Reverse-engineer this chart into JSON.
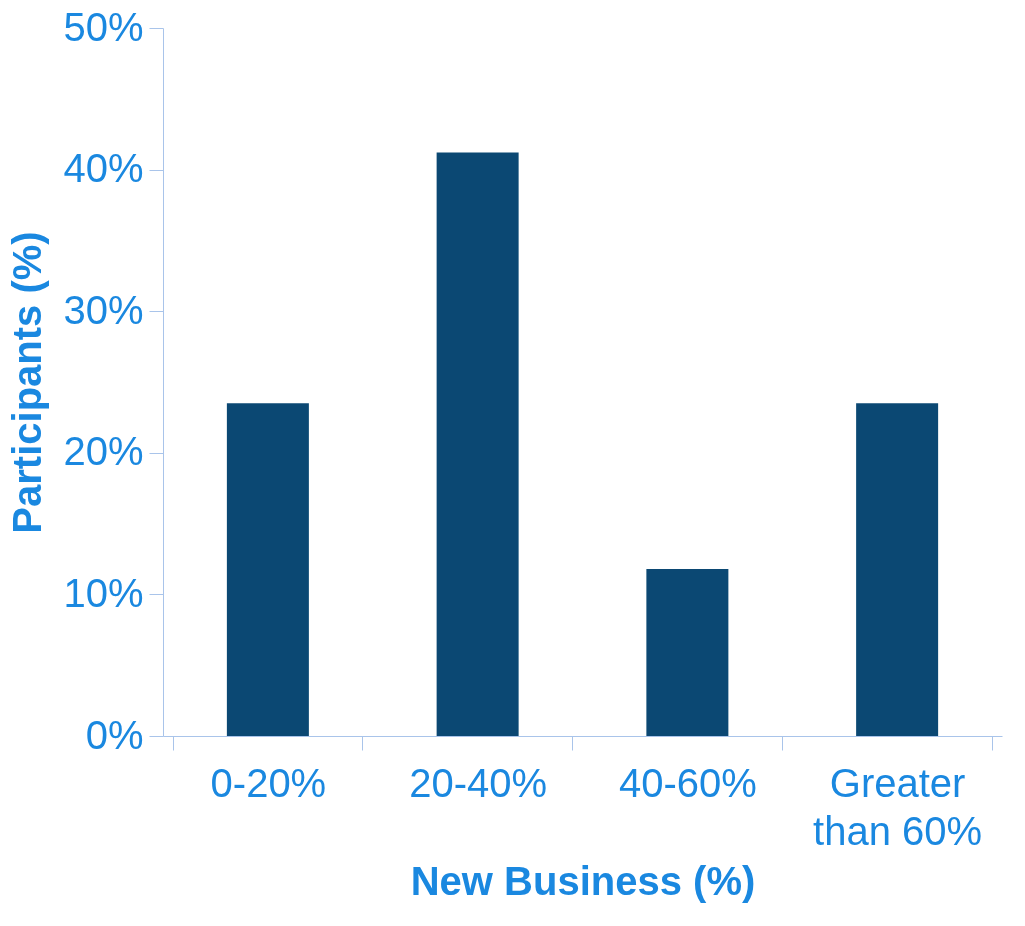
{
  "chart_data": {
    "type": "bar",
    "xlabel": "New Business (%)",
    "ylabel": "Participants (%)",
    "categories": [
      "0-20%",
      "20-40%",
      "40-60%",
      "Greater than 60%"
    ],
    "values": [
      23.5,
      41.2,
      11.8,
      23.5
    ],
    "color": "#0b4873",
    "ylim": [
      0,
      50
    ],
    "yticks": [
      {
        "value": 0,
        "label": "0%"
      },
      {
        "value": 10,
        "label": "10%"
      },
      {
        "value": 20,
        "label": "20%"
      },
      {
        "value": 30,
        "label": "30%"
      },
      {
        "value": 40,
        "label": "40%"
      },
      {
        "value": 50,
        "label": "50%"
      }
    ],
    "grid": false
  }
}
